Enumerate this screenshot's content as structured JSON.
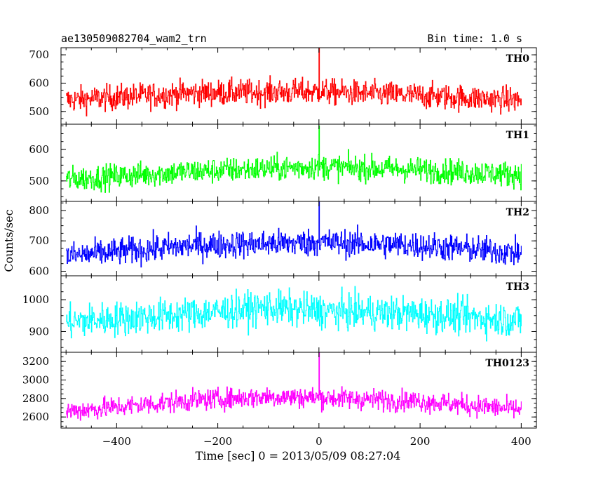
{
  "header": {
    "title": "ae130509082704_wam2_trn",
    "bin_time": "Bin time: 1.0 s"
  },
  "chart_data": {
    "type": "line",
    "title": "ae130509082704_wam2_trn",
    "xlabel": "Time [sec] 0 = 2013/05/09 08:27:04",
    "ylabel": "Counts/sec",
    "xlim": [
      -510,
      430
    ],
    "x_ticks": [
      -400,
      -200,
      0,
      200,
      400
    ],
    "x_tick_labels": [
      "−400",
      "−200",
      "0",
      "200",
      "400"
    ],
    "x_range_data": [
      -500,
      400
    ],
    "grid": false,
    "panels": [
      {
        "name": "TH0",
        "color": "#ff0000",
        "ylim": [
          455,
          725
        ],
        "yticks": [
          500,
          600,
          700
        ],
        "ytick_labels": [
          "500",
          "600",
          "700"
        ],
        "profile": [
          [
            -500,
            540
          ],
          [
            -250,
            565
          ],
          [
            0,
            570
          ],
          [
            200,
            555
          ],
          [
            400,
            540
          ]
        ],
        "noise": 32,
        "spike": {
          "x": 0,
          "value": 725
        }
      },
      {
        "name": "TH1",
        "color": "#00ff00",
        "ylim": [
          435,
          680
        ],
        "yticks": [
          500,
          600
        ],
        "ytick_labels": [
          "500",
          "600"
        ],
        "profile": [
          [
            -500,
            505
          ],
          [
            -250,
            530
          ],
          [
            0,
            545
          ],
          [
            200,
            535
          ],
          [
            400,
            520
          ]
        ],
        "noise": 28,
        "spike": {
          "x": 0,
          "value": 675
        }
      },
      {
        "name": "TH2",
        "color": "#0000ff",
        "ylim": [
          585,
          830
        ],
        "yticks": [
          600,
          700,
          800
        ],
        "ytick_labels": [
          "600",
          "700",
          "800"
        ],
        "profile": [
          [
            -500,
            650
          ],
          [
            -250,
            685
          ],
          [
            0,
            695
          ],
          [
            200,
            685
          ],
          [
            400,
            660
          ]
        ],
        "noise": 32,
        "spike": {
          "x": 0,
          "value": 830
        }
      },
      {
        "name": "TH3",
        "color": "#00ffff",
        "ylim": [
          835,
          1075
        ],
        "yticks": [
          900,
          1000
        ],
        "ytick_labels": [
          "900",
          "1000"
        ],
        "profile": [
          [
            -500,
            930
          ],
          [
            -250,
            955
          ],
          [
            -100,
            975
          ],
          [
            0,
            965
          ],
          [
            200,
            955
          ],
          [
            400,
            935
          ]
        ],
        "noise": 38,
        "spike": null
      },
      {
        "name": "TH0123",
        "color": "#ff00ff",
        "ylim": [
          2480,
          3300
        ],
        "yticks": [
          2600,
          2800,
          3000,
          3200
        ],
        "ytick_labels": [
          "2600",
          "2800",
          "3000",
          "3200"
        ],
        "profile": [
          [
            -500,
            2660
          ],
          [
            -250,
            2780
          ],
          [
            -100,
            2820
          ],
          [
            0,
            2810
          ],
          [
            200,
            2770
          ],
          [
            400,
            2680
          ]
        ],
        "noise": 80,
        "spike": {
          "x": 0,
          "value": 3300
        }
      }
    ]
  }
}
